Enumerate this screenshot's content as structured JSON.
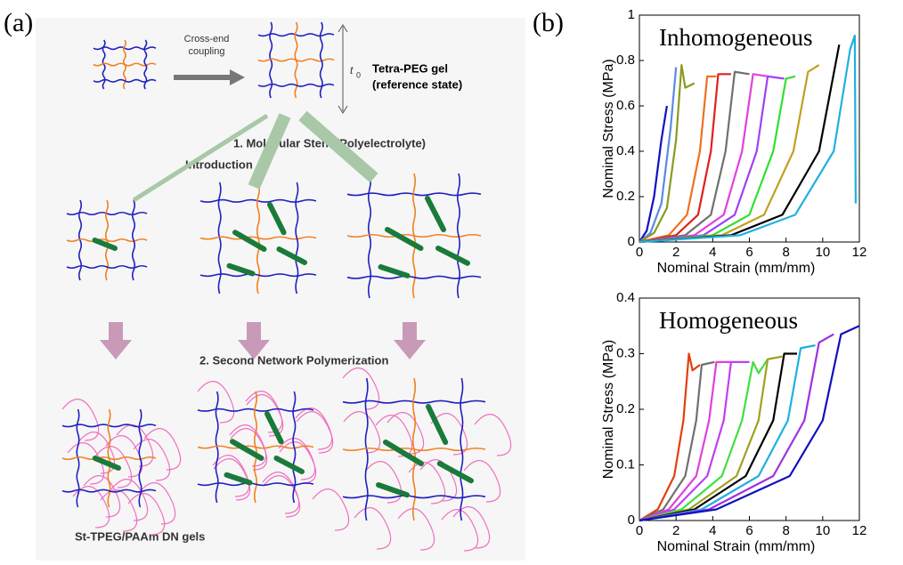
{
  "figure": {
    "panel_a_label": "(a)",
    "panel_b_label": "(b)",
    "diagram": {
      "coupling_line1": "Cross-end",
      "coupling_line2": "coupling",
      "t_symbol": "t",
      "t_subscript": "0",
      "ref_line1": "Tetra-PEG gel",
      "ref_line2": "(reference state)",
      "step1_line1": "1. Molecular Stent (Polyelectrolyte)",
      "step1_line2": "Introduction",
      "step2": "2. Second Network Polymerization",
      "result": "St-TPEG/PAAm DN gels"
    }
  },
  "chart_data": [
    {
      "type": "line",
      "annotation": "Inhomogeneous",
      "xlabel": "Nominal Strain (mm/mm)",
      "ylabel": "Nominal Stress (MPa)",
      "xlim": [
        0,
        12
      ],
      "ylim": [
        0,
        1
      ],
      "xticks": [
        0,
        2,
        4,
        6,
        8,
        10,
        12
      ],
      "yticks": [
        0,
        0.2,
        0.4,
        0.6,
        0.8,
        1
      ],
      "series": [
        {
          "color": "#1010c8",
          "x": [
            0,
            0.4,
            0.8,
            1.2,
            1.5
          ],
          "values": [
            0,
            0.05,
            0.2,
            0.45,
            0.6
          ]
        },
        {
          "color": "#5a8ae6",
          "x": [
            0,
            0.6,
            1.2,
            1.7,
            2.0
          ],
          "values": [
            0,
            0.04,
            0.17,
            0.5,
            0.77
          ]
        },
        {
          "color": "#8a9a20",
          "x": [
            0,
            0.8,
            1.5,
            2.0,
            2.3,
            2.5,
            3.0
          ],
          "values": [
            0,
            0.04,
            0.15,
            0.45,
            0.78,
            0.68,
            0.7
          ]
        },
        {
          "color": "#f07020",
          "x": [
            0,
            1.6,
            2.6,
            3.3,
            3.7,
            4.2
          ],
          "values": [
            0,
            0.03,
            0.12,
            0.4,
            0.73,
            0.73
          ]
        },
        {
          "color": "#e02020",
          "x": [
            0,
            2,
            3.2,
            3.9,
            4.3,
            5.0
          ],
          "values": [
            0,
            0.03,
            0.12,
            0.4,
            0.74,
            0.74
          ]
        },
        {
          "color": "#707070",
          "x": [
            0,
            2.5,
            3.9,
            4.7,
            5.2,
            6.0
          ],
          "values": [
            0,
            0.03,
            0.12,
            0.4,
            0.75,
            0.74
          ]
        },
        {
          "color": "#e040e0",
          "x": [
            0,
            3,
            4.6,
            5.6,
            6.2,
            7.0
          ],
          "values": [
            0,
            0.03,
            0.12,
            0.4,
            0.74,
            0.73
          ]
        },
        {
          "color": "#a040f0",
          "x": [
            0,
            3.5,
            5.2,
            6.4,
            7.0,
            7.9
          ],
          "values": [
            0,
            0.03,
            0.12,
            0.4,
            0.73,
            0.72
          ]
        },
        {
          "color": "#30e030",
          "x": [
            0,
            4,
            6,
            7.3,
            8,
            8.5
          ],
          "values": [
            0,
            0.03,
            0.12,
            0.4,
            0.72,
            0.73
          ]
        },
        {
          "color": "#c0a020",
          "x": [
            0,
            4.5,
            6.8,
            8.4,
            9.2,
            9.8
          ],
          "values": [
            0,
            0.03,
            0.12,
            0.4,
            0.75,
            0.78
          ]
        },
        {
          "color": "#000000",
          "x": [
            0,
            5,
            7.8,
            9.8,
            10.9
          ],
          "values": [
            0,
            0.03,
            0.12,
            0.4,
            0.87
          ]
        },
        {
          "color": "#20b0e0",
          "x": [
            0,
            5.5,
            8.5,
            10.6,
            11.5,
            11.75,
            11.8
          ],
          "values": [
            0,
            0.03,
            0.12,
            0.4,
            0.85,
            0.91,
            0.17
          ]
        }
      ]
    },
    {
      "type": "line",
      "annotation": "Homogeneous",
      "xlabel": "Nominal Strain (mm/mm)",
      "ylabel": "Nominal Stress (MPa)",
      "xlim": [
        0,
        12
      ],
      "ylim": [
        0,
        0.4
      ],
      "xticks": [
        0,
        2,
        4,
        6,
        8,
        10,
        12
      ],
      "yticks": [
        0,
        0.1,
        0.2,
        0.3,
        0.4
      ],
      "series": [
        {
          "color": "#e04010",
          "x": [
            0,
            1,
            1.9,
            2.4,
            2.7,
            2.9,
            3.3
          ],
          "values": [
            0,
            0.02,
            0.08,
            0.18,
            0.3,
            0.27,
            0.28
          ]
        },
        {
          "color": "#707070",
          "x": [
            0,
            1.3,
            2.5,
            3.1,
            3.4,
            4.1
          ],
          "values": [
            0,
            0.02,
            0.08,
            0.18,
            0.28,
            0.285
          ]
        },
        {
          "color": "#e040e0",
          "x": [
            0,
            1.6,
            3.1,
            3.8,
            4.2,
            5.0
          ],
          "values": [
            0,
            0.02,
            0.08,
            0.18,
            0.285,
            0.285
          ]
        },
        {
          "color": "#c040f0",
          "x": [
            0,
            1.9,
            3.7,
            4.6,
            5.0,
            6.0
          ],
          "values": [
            0,
            0.02,
            0.08,
            0.18,
            0.285,
            0.285
          ]
        },
        {
          "color": "#40e040",
          "x": [
            0,
            2.3,
            4.5,
            5.6,
            6.2,
            6.5,
            7.0
          ],
          "values": [
            0,
            0.02,
            0.08,
            0.18,
            0.285,
            0.265,
            0.29
          ]
        },
        {
          "color": "#a0a020",
          "x": [
            0,
            2.7,
            5.3,
            6.5,
            7.0,
            7.8
          ],
          "values": [
            0,
            0.02,
            0.08,
            0.18,
            0.29,
            0.295
          ]
        },
        {
          "color": "#000000",
          "x": [
            0,
            3,
            5.8,
            7.3,
            7.9,
            8.6
          ],
          "values": [
            0,
            0.02,
            0.08,
            0.18,
            0.3,
            0.3
          ]
        },
        {
          "color": "#20b0e0",
          "x": [
            0,
            3.4,
            6.5,
            8.1,
            8.8,
            9.6
          ],
          "values": [
            0,
            0.02,
            0.08,
            0.18,
            0.31,
            0.315
          ]
        },
        {
          "color": "#a030e0",
          "x": [
            0,
            3.8,
            7.3,
            9.0,
            9.8,
            10.6
          ],
          "values": [
            0,
            0.02,
            0.08,
            0.18,
            0.32,
            0.335
          ]
        },
        {
          "color": "#1010c0",
          "x": [
            0,
            4.2,
            8.2,
            10.0,
            11.0,
            12.0
          ],
          "values": [
            0,
            0.02,
            0.08,
            0.18,
            0.335,
            0.35
          ]
        }
      ]
    }
  ]
}
